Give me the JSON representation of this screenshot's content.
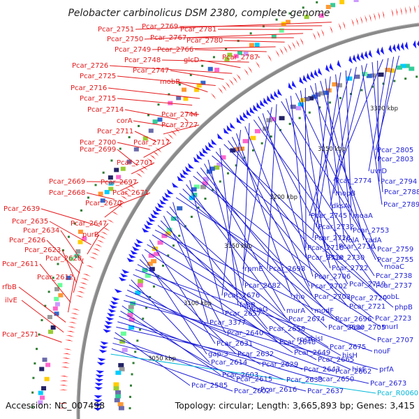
{
  "title": "Pelobacter carbinolicus DSM 2380, complete genome",
  "accession": "Accession: NC_007498",
  "topology": "Topology: circular; Length: 3,665,893 bp; Genes: 3,415",
  "colors": {
    "plus_label": "#e41a1c",
    "minus_label": "#1f1fd6",
    "rna_label": "#00b7d9",
    "plus_arrow": "#ff0000",
    "minus_arrow": "#1a1aff",
    "backbone": "#8a8a8a",
    "tick": "#2e7d32"
  },
  "kbp_marks": [
    "3050 kbp",
    "3100 kbp",
    "3150 kbp",
    "3200 kbp",
    "3250 kbp",
    "3300 kbp"
  ],
  "left_labels": [
    "Pcar_2751",
    "Pcar_2769",
    "Pcar_2781",
    "Pcar_2750",
    "Pcar_2767",
    "Pcar_2780",
    "Pcar_2749",
    "Pcar_2766",
    "Pcar_2787",
    "Pcar_2748",
    "glcD",
    "Pcar_2726",
    "Pcar_2747",
    "Pcar_2725",
    "mobB",
    "Pcar_2716",
    "Pcar_2715",
    "Pcar_2744",
    "Pcar_2714",
    "corA",
    "Pcar_2727",
    "Pcar_2711",
    "Pcar_2700",
    "Pcar_2717",
    "Pcar_2699",
    "Pcar_2701",
    "Pcar_2669",
    "Pcar_2697",
    "Pcar_2668",
    "Pcar_2671",
    "Pcar_2670",
    "Pcar_2639",
    "Pcar_2647",
    "Pcar_2635",
    "purB",
    "Pcar_2634",
    "Pcar_2626",
    "Pcar_2623",
    "Pcar_2628",
    "Pcar_2611",
    "Pcar_2612",
    "rfbB",
    "ilvE",
    "Pcar_2571"
  ],
  "right_labels": [
    "Pcar_2805",
    "Pcar_2803",
    "uvrD",
    "Pcar_2774",
    "Pcar_2794",
    "Pcar_2788",
    "mopB",
    "Pcar_2789",
    "dksA",
    "Pcar_2745",
    "moaA",
    "Pcar_2732",
    "Pcar_2753",
    "Pcar_2728",
    "folA",
    "radA",
    "Pcar_2736",
    "Pcar_2759",
    "Pcar_2718",
    "Pcar_2730",
    "Pcar_2755",
    "Pcar_2710",
    "Pcar_2722",
    "moaC",
    "Pcar_2698",
    "rpmE",
    "Pcar_2738",
    "Pcar_2706",
    "Pcar_2719",
    "Pcar_2737",
    "Pcar_2682",
    "Pcar_2702",
    "Pcar_2676",
    "rho",
    "Pcar_2703",
    "Pcar_2720",
    "cobL",
    "fabB",
    "Pcar_2721",
    "phpB",
    "dnaG",
    "murA",
    "modF",
    "Pcar_2696",
    "Pcar_2723",
    "Pcar_2657",
    "Pcar_2674",
    "Pcar_2680",
    "Pcar_2705",
    "murI",
    "Pcar_3377",
    "Pcar_2658",
    "hisI",
    "Pcar_2640",
    "Pcar_2648",
    "rpsA",
    "Pcar_2707",
    "Pcar_2675",
    "Pcar_2631",
    "hisH",
    "Pcar_2649",
    "gap-3",
    "Pcar_2632",
    "Pcar_2665",
    "nouF",
    "hisF",
    "Pcar_2614",
    "Pcar_2629",
    "Pcar_2643",
    "Pcar_2662",
    "prfA",
    "Pcar_2603",
    "Pcar_2615",
    "Pcar_2633",
    "Pcar_2650",
    "Pcar_2673",
    "Pcar_2585",
    "Pcar_2616",
    "Pcar_2637",
    "Pcar_2602",
    "Pcar_R0060"
  ]
}
